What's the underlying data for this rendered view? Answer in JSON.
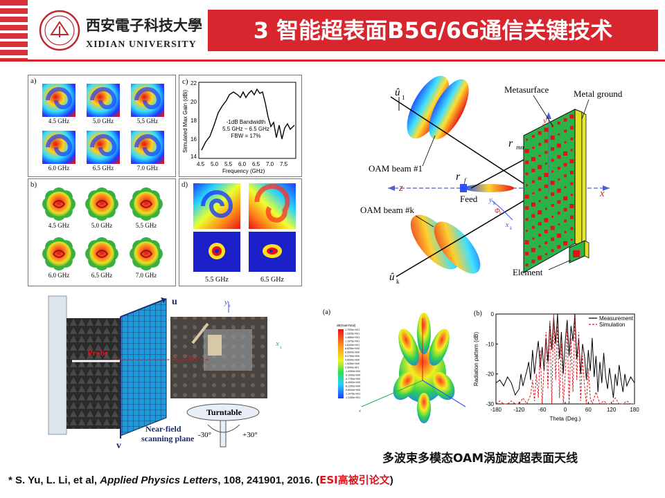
{
  "header": {
    "title": "3 智能超表面B5G/6G通信关键技术",
    "university_cn": "西安電子科技大學",
    "university_en": "XIDIAN UNIVERSITY"
  },
  "panel_a": {
    "label": "a)",
    "captions": [
      "4.5 GHz",
      "5.0 GHz",
      "5.5 GHz",
      "6.0 GHz",
      "6.5 GHz",
      "7.0 GHz"
    ]
  },
  "panel_b": {
    "label": "b)",
    "captions": [
      "4.5 GHz",
      "5.0 GHz",
      "5.5 GHz",
      "6.0 GHz",
      "6.5 GHz",
      "7.0 GHz"
    ]
  },
  "panel_c": {
    "label": "c)",
    "annotation": [
      "-1dB Bandwidth",
      "5.5 GHz ~ 6.5 GHz",
      "FBW = 17%"
    ]
  },
  "panel_d": {
    "label": "d)",
    "captions": [
      "5.5 GHz",
      "6.5 GHz"
    ]
  },
  "diagram": {
    "metasurface": "Metasurface",
    "metal_ground": "Metal ground",
    "beam1": "OAM beam #1",
    "beamk": "OAM beam #k",
    "feed": "Feed",
    "element": "Element",
    "u1": "û",
    "u1_sub": "1",
    "uk": "û",
    "uk_sub": "k",
    "rmn": "r",
    "rmn_sub": "mn",
    "rf": "r",
    "rf_sub": "f",
    "z": "z",
    "x": "x",
    "y": "y",
    "xk": "x",
    "xk_sub": "k",
    "yk": "y",
    "yk_sub": "k",
    "phik": "Φ",
    "phik_sub": "k"
  },
  "measurement": {
    "u": "u",
    "v": "v",
    "probe": "Probe",
    "zs": "z",
    "zs_val": "s",
    "zs_rest": "=3m",
    "nearfield": "Near-field",
    "scanning": "scanning plane",
    "turntable": "Turntable",
    "neg30": "-30°",
    "pos30": "+30°",
    "ys": "y",
    "ys_sub": "s",
    "xs": "x",
    "xs_sub": "s"
  },
  "pattern_3d": {
    "label": "(a)",
    "colorbar_title": "dB(GainTotal)",
    "colorbar_ticks": [
      "1.7000e+001",
      "1.5325e+001",
      "1.3650e+001",
      "1.1975e+001",
      "1.0300e+001",
      "8.6250e+000",
      "6.9500e+000",
      "5.2750e+000",
      "3.6000e+000",
      "1.9250e+000",
      "2.5000e-001",
      "-1.4250e+000",
      "-3.1000e+000",
      "-4.7750e+000",
      "-6.4500e+000",
      "-8.1250e+000",
      "-9.8000e+000",
      "-1.1475e+001",
      "-1.3150e+001"
    ],
    "axis": "x"
  },
  "chart_data": {
    "type": "line",
    "label": "(b)",
    "title": "",
    "xlabel": "Theta (Deg.)",
    "ylabel": "Radiation pattern (dB)",
    "xlim": [
      -180,
      180
    ],
    "ylim": [
      -30,
      0
    ],
    "xticks": [
      -180,
      -120,
      -60,
      0,
      60,
      120,
      180
    ],
    "yticks": [
      0,
      -10,
      -20,
      -30
    ],
    "legend": "top-right",
    "series": [
      {
        "name": "Measurement",
        "color": "#000000",
        "x": [
          -180,
          -170,
          -160,
          -150,
          -140,
          -130,
          -120,
          -115,
          -110,
          -100,
          -95,
          -90,
          -85,
          -80,
          -75,
          -70,
          -65,
          -60,
          -55,
          -50,
          -45,
          -40,
          -35,
          -30,
          -25,
          -20,
          -15,
          -10,
          -5,
          0,
          5,
          10,
          15,
          20,
          25,
          30,
          35,
          40,
          45,
          50,
          55,
          60,
          65,
          70,
          75,
          80,
          85,
          90,
          95,
          100,
          105,
          110,
          115,
          120,
          125,
          130,
          135,
          140,
          145,
          150,
          155,
          160,
          170,
          180
        ],
        "y": [
          -23,
          -22,
          -24,
          -21,
          -23,
          -27,
          -25,
          -20,
          -24,
          -19,
          -16,
          -22,
          -12,
          -20,
          -14,
          -9,
          -18,
          -11,
          -19,
          -8,
          -16,
          -3,
          -12,
          -1,
          -10,
          0,
          -15,
          -6,
          -20,
          -9,
          -2,
          -14,
          -4,
          -9,
          0,
          -15,
          -8,
          -20,
          -10,
          -14,
          -22,
          -12,
          -19,
          -8,
          -21,
          -14,
          -26,
          -16,
          -23,
          -13,
          -21,
          -25,
          -18,
          -23,
          -28,
          -20,
          -24,
          -17,
          -22,
          -26,
          -20,
          -24,
          -21,
          -23
        ]
      },
      {
        "name": "Simulation",
        "color": "#e0121b",
        "x": [
          -180,
          -170,
          -160,
          -150,
          -140,
          -130,
          -120,
          -110,
          -100,
          -90,
          -85,
          -80,
          -75,
          -70,
          -65,
          -60,
          -55,
          -50,
          -45,
          -40,
          -35,
          -30,
          -25,
          -20,
          -15,
          -10,
          -5,
          0,
          5,
          10,
          15,
          20,
          25,
          30,
          35,
          40,
          45,
          50,
          55,
          60,
          65,
          70,
          80,
          90,
          100,
          110,
          120,
          130,
          140,
          150,
          160,
          170,
          180
        ],
        "y": [
          -30,
          -29,
          -30,
          -30,
          -29,
          -30,
          -30,
          -28,
          -30,
          -27,
          -22,
          -29,
          -20,
          -28,
          -12,
          -30,
          -18,
          -6,
          -25,
          -2,
          -30,
          0,
          -22,
          -4,
          -28,
          -10,
          -30,
          -20,
          -5,
          -30,
          -8,
          -26,
          -1,
          -22,
          -6,
          -29,
          -14,
          -24,
          -30,
          -18,
          -28,
          -30,
          -26,
          -30,
          -29,
          -30,
          -30,
          -28,
          -30,
          -30,
          -29,
          -30,
          -30
        ]
      }
    ]
  },
  "footer": {
    "caption_cn": "多波束多模态OAM涡旋波超表面天线",
    "ref_prefix": "* S. Yu, L. Li, et al, ",
    "ref_journal": "Applied Physics Letters",
    "ref_suffix": ", 108, 241901, 2016. (",
    "ref_highlight": "ESI高被引论文",
    "ref_close": ")"
  }
}
